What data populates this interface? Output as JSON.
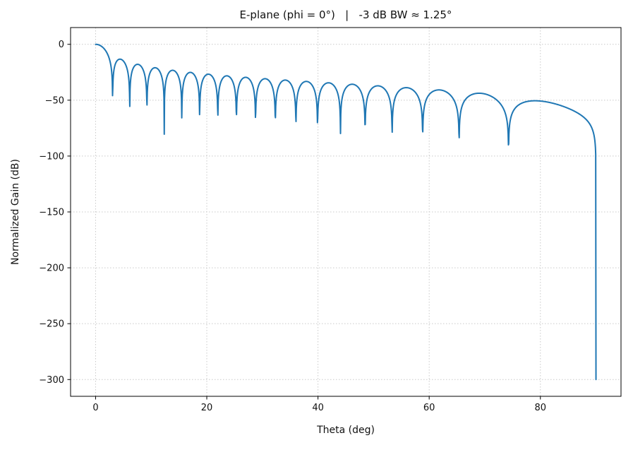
{
  "chart_data": {
    "type": "line",
    "title": "E-plane (phi = 0°)   |   -3 dB BW ≈ 1.25°",
    "xlabel": "Theta (deg)",
    "ylabel": "Normalized Gain (dB)",
    "xlim": [
      -4.5,
      94.5
    ],
    "ylim": [
      -315,
      15
    ],
    "x_ticks": [
      0,
      20,
      40,
      60,
      80
    ],
    "y_ticks": [
      0,
      -50,
      -100,
      -150,
      -200,
      -250,
      -300
    ],
    "grid": true,
    "grid_style": "dotted",
    "legend": "none",
    "line_color": "#1f77b4",
    "line_width": 2,
    "series": [
      {
        "name": "normalized-gain-db",
        "model": {
          "kind": "uniform-aperture-sinc-with-cos-element-factor",
          "aperture_wavelengths": 18.7,
          "element_cos_exponent": 1,
          "theta_deg_start": 0,
          "theta_deg_end": 90,
          "theta_deg_step": 0.05,
          "floor_db": -300,
          "peak_db": 0
        },
        "notable_values": {
          "main_lobe_peak_theta_deg": 0,
          "main_lobe_peak_db": 0,
          "first_null_theta_deg": 3.1,
          "approx_first_sidelobe_db": -14,
          "approx_sidelobe_envelope_at_70deg_db": -44,
          "final_broad_lobe_theta_deg": 78,
          "cliff_theta_deg": 90,
          "cliff_bottom_db": -300
        }
      }
    ]
  }
}
